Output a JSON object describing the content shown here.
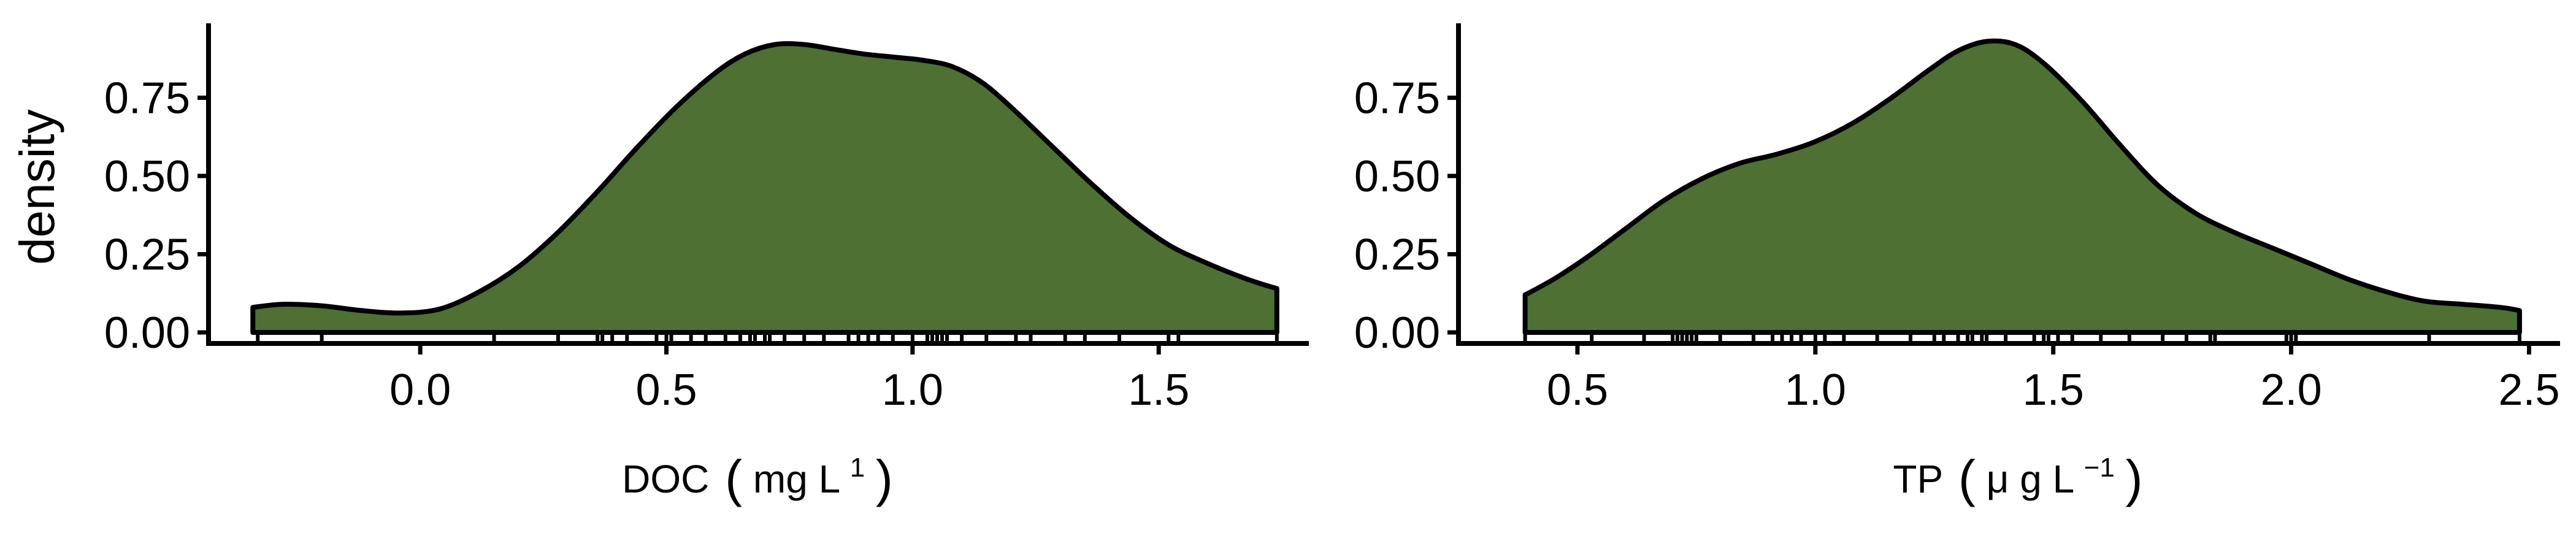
{
  "colors": {
    "fill": "#4e7032",
    "outline": "#000000",
    "background": "#ffffff"
  },
  "chart_data": [
    {
      "type": "area",
      "id": "doc",
      "ylabel": "density",
      "xlabel": {
        "main": "DOC",
        "units": "mg L",
        "superscript": "1"
      },
      "xlim": [
        -0.43,
        1.8
      ],
      "ylim": [
        0,
        0.98
      ],
      "xticks": [
        0.0,
        0.5,
        1.0,
        1.5
      ],
      "xtick_labels": [
        "0.0",
        "0.5",
        "1.0",
        "1.5"
      ],
      "yticks": [
        0.0,
        0.25,
        0.5,
        0.75
      ],
      "ytick_labels": [
        "0.00",
        "0.25",
        "0.50",
        "0.75"
      ],
      "grid": false,
      "x": [
        -0.34,
        -0.28,
        -0.2,
        -0.12,
        -0.04,
        0.04,
        0.12,
        0.2,
        0.28,
        0.36,
        0.44,
        0.52,
        0.6,
        0.66,
        0.72,
        0.78,
        0.84,
        0.9,
        0.96,
        1.02,
        1.08,
        1.14,
        1.2,
        1.28,
        1.36,
        1.44,
        1.52,
        1.6,
        1.68,
        1.74
      ],
      "y": [
        0.08,
        0.09,
        0.085,
        0.07,
        0.062,
        0.075,
        0.13,
        0.21,
        0.32,
        0.45,
        0.59,
        0.72,
        0.83,
        0.89,
        0.92,
        0.92,
        0.905,
        0.89,
        0.88,
        0.87,
        0.85,
        0.8,
        0.72,
        0.6,
        0.48,
        0.37,
        0.28,
        0.22,
        0.17,
        0.14
      ],
      "rug": [
        -0.33,
        -0.2,
        0.15,
        0.28,
        0.36,
        0.37,
        0.39,
        0.42,
        0.48,
        0.5,
        0.51,
        0.55,
        0.58,
        0.62,
        0.65,
        0.67,
        0.68,
        0.7,
        0.71,
        0.74,
        0.78,
        0.82,
        0.87,
        0.89,
        0.91,
        0.93,
        0.96,
        1.0,
        1.03,
        1.04,
        1.05,
        1.06,
        1.07,
        1.1,
        1.15,
        1.21,
        1.24,
        1.31,
        1.35,
        1.42,
        1.52,
        1.54,
        1.74
      ]
    },
    {
      "type": "area",
      "id": "tp",
      "ylabel": "",
      "xlabel": {
        "main": "TP",
        "units": "μ g L",
        "superscript": "−1"
      },
      "xlim": [
        0.25,
        2.56
      ],
      "ylim": [
        0,
        0.98
      ],
      "xticks": [
        0.5,
        1.0,
        1.5,
        2.0,
        2.5
      ],
      "xtick_labels": [
        "0.5",
        "1.0",
        "1.5",
        "2.0",
        "2.5"
      ],
      "yticks": [
        0.0,
        0.25,
        0.5,
        0.75
      ],
      "ytick_labels": [
        "0.00",
        "0.25",
        "0.50",
        "0.75"
      ],
      "grid": false,
      "x": [
        0.39,
        0.45,
        0.52,
        0.6,
        0.68,
        0.76,
        0.84,
        0.92,
        1.0,
        1.08,
        1.16,
        1.24,
        1.3,
        1.36,
        1.42,
        1.48,
        1.56,
        1.64,
        1.72,
        1.8,
        1.88,
        1.96,
        2.04,
        2.12,
        2.2,
        2.28,
        2.36,
        2.44,
        2.48
      ],
      "y": [
        0.12,
        0.17,
        0.24,
        0.33,
        0.42,
        0.49,
        0.54,
        0.57,
        0.61,
        0.67,
        0.75,
        0.84,
        0.9,
        0.93,
        0.92,
        0.86,
        0.74,
        0.6,
        0.47,
        0.38,
        0.32,
        0.27,
        0.22,
        0.17,
        0.13,
        0.1,
        0.09,
        0.08,
        0.07
      ],
      "rug": [
        0.39,
        0.53,
        0.64,
        0.7,
        0.71,
        0.72,
        0.73,
        0.74,
        0.75,
        0.8,
        0.87,
        0.91,
        0.93,
        0.95,
        0.97,
        1.0,
        1.02,
        1.06,
        1.13,
        1.2,
        1.25,
        1.27,
        1.3,
        1.32,
        1.33,
        1.35,
        1.36,
        1.4,
        1.46,
        1.48,
        1.49,
        1.51,
        1.54,
        1.6,
        1.66,
        1.73,
        1.78,
        1.83,
        1.84,
        1.99,
        2.0,
        2.01,
        2.29,
        2.48
      ]
    }
  ]
}
